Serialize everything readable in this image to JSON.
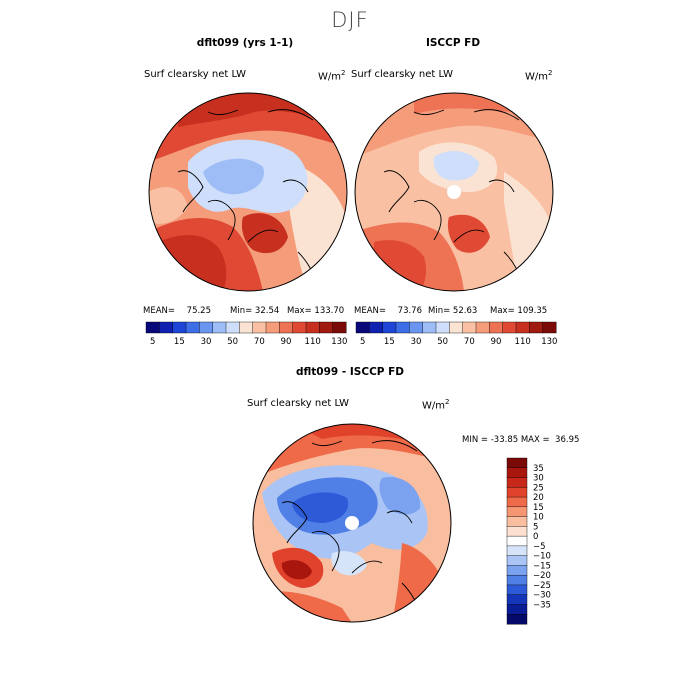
{
  "figure": {
    "season": "DJF"
  },
  "chart_data": [
    {
      "type": "heatmap",
      "title": "dflt099 (yrs 1-1)",
      "variable": "Surf clearsky net LW",
      "units": "W/m",
      "units_sup": "2",
      "projection": "north polar stereographic",
      "stats": {
        "mean_label": "MEAN=",
        "mean": "75.25",
        "min_label": "Min=",
        "min": "32.54",
        "max_label": "Max=",
        "max": "133.70"
      },
      "colorbar": {
        "orientation": "horizontal",
        "ticks": [
          "5",
          "15",
          "30",
          "50",
          "70",
          "90",
          "110",
          "130"
        ],
        "levels": [
          5,
          10,
          15,
          20,
          30,
          40,
          50,
          60,
          70,
          80,
          90,
          100,
          110,
          120,
          130
        ],
        "colors": [
          "#08087a",
          "#1020b0",
          "#1f45d6",
          "#3d6ee8",
          "#6a95f0",
          "#9ebcf5",
          "#cfdefa",
          "#fbe3d3",
          "#f9c0a3",
          "#f59c7b",
          "#ee7355",
          "#e04a34",
          "#c7301e",
          "#a11a10",
          "#7a0a08"
        ]
      }
    },
    {
      "type": "heatmap",
      "title": "ISCCP FD",
      "variable": "Surf clearsky net LW",
      "units": "W/m",
      "units_sup": "2",
      "projection": "north polar stereographic",
      "stats": {
        "mean_label": "MEAN=",
        "mean": "73.76",
        "min_label": "Min=",
        "min": "52.63",
        "max_label": "Max=",
        "max": "109.35"
      },
      "colorbar": {
        "orientation": "horizontal",
        "ticks": [
          "5",
          "15",
          "30",
          "50",
          "70",
          "90",
          "110",
          "130"
        ],
        "levels": [
          5,
          10,
          15,
          20,
          30,
          40,
          50,
          60,
          70,
          80,
          90,
          100,
          110,
          120,
          130
        ],
        "colors": [
          "#08087a",
          "#1020b0",
          "#1f45d6",
          "#3d6ee8",
          "#6a95f0",
          "#9ebcf5",
          "#cfdefa",
          "#fbe3d3",
          "#f9c0a3",
          "#f59c7b",
          "#ee7355",
          "#e04a34",
          "#c7301e",
          "#a11a10",
          "#7a0a08"
        ]
      }
    },
    {
      "type": "heatmap",
      "title": "dflt099 - ISCCP FD",
      "variable": "Surf clearsky net LW",
      "units": "W/m",
      "units_sup": "2",
      "projection": "north polar stereographic",
      "stats": {
        "min_label": "MIN =",
        "min": "-33.85",
        "max_label": "MAX =",
        "max": "36.95"
      },
      "colorbar": {
        "orientation": "vertical",
        "ticks": [
          "35",
          "30",
          "25",
          "20",
          "15",
          "10",
          "5",
          "0",
          "−5",
          "−10",
          "−15",
          "−20",
          "−25",
          "−30",
          "−35"
        ],
        "colors": [
          "#7a0a08",
          "#a8160e",
          "#c8281a",
          "#e0422c",
          "#ef6a48",
          "#f59673",
          "#f9bd9f",
          "#fde0cf",
          "#ffffff",
          "#d6e4fa",
          "#a9c4f5",
          "#7ba2ee",
          "#5080e6",
          "#2d5bd8",
          "#1536b8",
          "#0a1c96",
          "#050a6a"
        ]
      }
    }
  ]
}
